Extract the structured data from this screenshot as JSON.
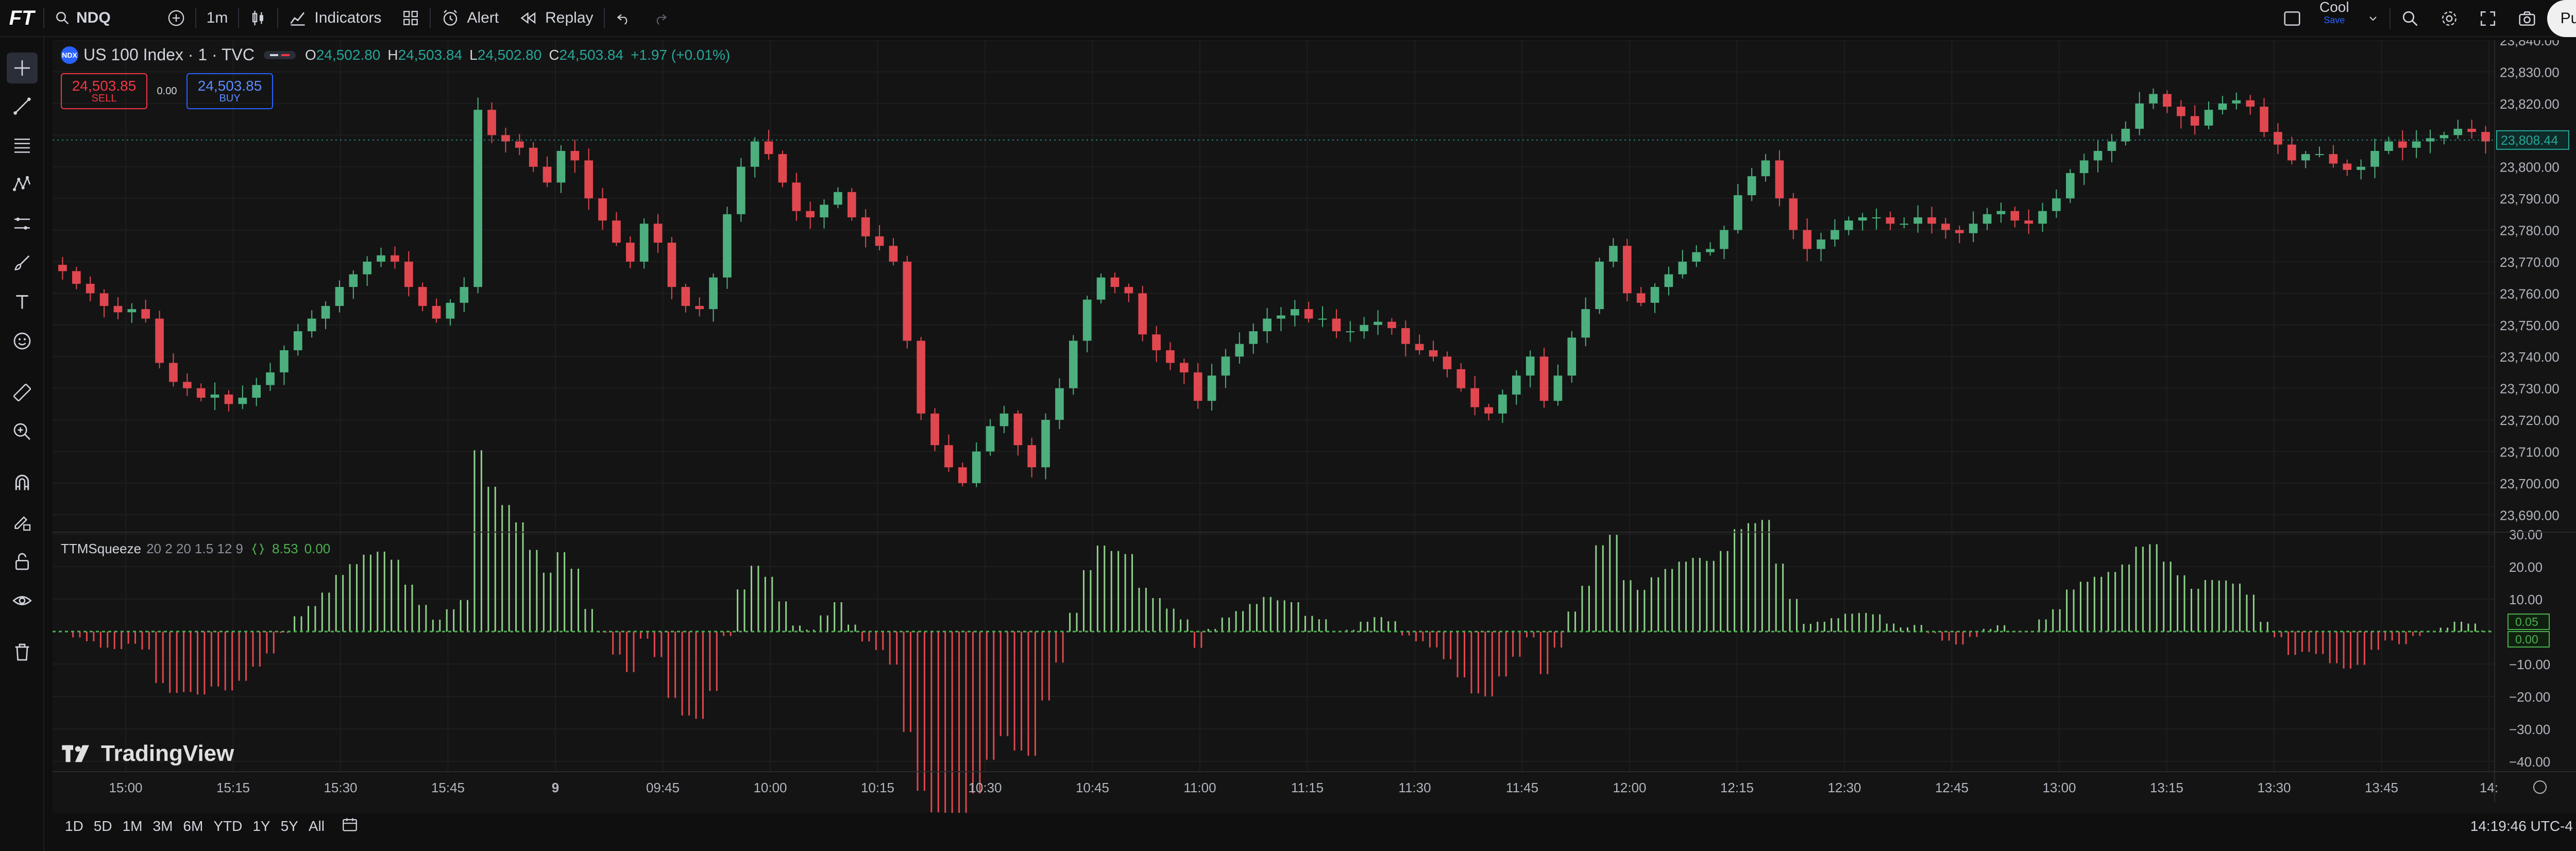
{
  "topbar": {
    "logo": "FT",
    "symbol": "NDQ",
    "interval": "1m",
    "indicators_label": "Indicators",
    "alert_label": "Alert",
    "replay_label": "Replay",
    "layout_name": "Cool",
    "layout_status": "Save",
    "publish_label": "Publish"
  },
  "legend": {
    "symbol_badge": "NDX",
    "title": "US 100 Index · 1 · TVC",
    "o_label": "O",
    "o_value": "24,502.80",
    "h_label": "H",
    "h_value": "24,503.84",
    "l_label": "L",
    "l_value": "24,502.80",
    "c_label": "C",
    "c_value": "24,503.84",
    "change": "+1.97 (+0.01%)",
    "sell_price": "24,503.85",
    "sell_label": "SELL",
    "spread": "0.00",
    "buy_price": "24,503.85",
    "buy_label": "BUY"
  },
  "indicator": {
    "name": "TTMSqueeze",
    "params": "20 2 20 1.5 12 9",
    "value1": "8.53",
    "value2": "0.00"
  },
  "watermark": "TradingView",
  "price_axis": {
    "labels": [
      "23,840.00",
      "23,830.00",
      "23,820.00",
      "23,810.00",
      "23,800.00",
      "23,790.00",
      "23,780.00",
      "23,770.00",
      "23,760.00",
      "23,750.00",
      "23,740.00",
      "23,730.00",
      "23,720.00",
      "23,710.00",
      "23,700.00",
      "23,690.00"
    ],
    "last_price_tag": "23,808.44"
  },
  "indicator_axis": {
    "labels": [
      "30.00",
      "20.00",
      "10.00",
      "−10.00",
      "−20.00",
      "−30.00",
      "−40.00"
    ],
    "tag1": "0.05",
    "tag2": "0.00"
  },
  "time_axis": {
    "labels": [
      "15:00",
      "15:15",
      "15:30",
      "15:45",
      "9",
      "09:45",
      "10:00",
      "10:15",
      "10:30",
      "10:45",
      "11:00",
      "11:15",
      "11:30",
      "11:45",
      "12:00",
      "12:15",
      "12:30",
      "12:45",
      "13:00",
      "13:15",
      "13:30",
      "13:45",
      "14:"
    ]
  },
  "bottombar": {
    "ranges": [
      "1D",
      "5D",
      "1M",
      "3M",
      "6M",
      "YTD",
      "1Y",
      "5Y",
      "All"
    ],
    "clock": "14:19:46 UTC-4"
  },
  "colors": {
    "up": "#4caf7d",
    "down": "#e0474f",
    "hist_up": "#8fd18a",
    "hist_down": "#e0474f",
    "accent": "#2962ff",
    "grid": "#1e1e1e"
  },
  "chart_data": {
    "type": "candlestick",
    "title": "",
    "ylim": [
      23685,
      23840
    ],
    "close_path": [
      23767,
      23763,
      23760,
      23756,
      23754,
      23755,
      23752,
      23738,
      23732,
      23730,
      23727,
      23728,
      23725,
      23727,
      23731,
      23735,
      23742,
      23748,
      23752,
      23756,
      23762,
      23766,
      23770,
      23772,
      23770,
      23762,
      23756,
      23752,
      23757,
      23762,
      23818,
      23810,
      23808,
      23806,
      23800,
      23795,
      23805,
      23802,
      23790,
      23783,
      23776,
      23770,
      23782,
      23776,
      23762,
      23756,
      23755,
      23765,
      23785,
      23800,
      23808,
      23804,
      23795,
      23786,
      23784,
      23788,
      23792,
      23784,
      23778,
      23775,
      23770,
      23745,
      23722,
      23712,
      23705,
      23700,
      23710,
      23718,
      23722,
      23712,
      23705,
      23720,
      23730,
      23745,
      23758,
      23765,
      23762,
      23760,
      23747,
      23742,
      23738,
      23735,
      23726,
      23734,
      23740,
      23744,
      23748,
      23752,
      23753,
      23755,
      23752,
      23752,
      23748,
      23748,
      23750,
      23751,
      23749,
      23744,
      23742,
      23740,
      23736,
      23730,
      23724,
      23722,
      23728,
      23734,
      23740,
      23726,
      23734,
      23746,
      23755,
      23770,
      23775,
      23760,
      23757,
      23762,
      23766,
      23770,
      23773,
      23774,
      23780,
      23791,
      23797,
      23802,
      23790,
      23780,
      23774,
      23777,
      23780,
      23783,
      23784,
      23784,
      23782,
      23782,
      23784,
      23782,
      23780,
      23779,
      23782,
      23785,
      23786,
      23783,
      23782,
      23786,
      23790,
      23798,
      23802,
      23805,
      23808,
      23812,
      23820,
      23823,
      23819,
      23816,
      23813,
      23818,
      23820,
      23821,
      23819,
      23811,
      23807,
      23802,
      23804,
      23804,
      23801,
      23799,
      23800,
      23805,
      23808,
      23806,
      23808,
      23809,
      23810,
      23812,
      23811,
      23808
    ]
  }
}
